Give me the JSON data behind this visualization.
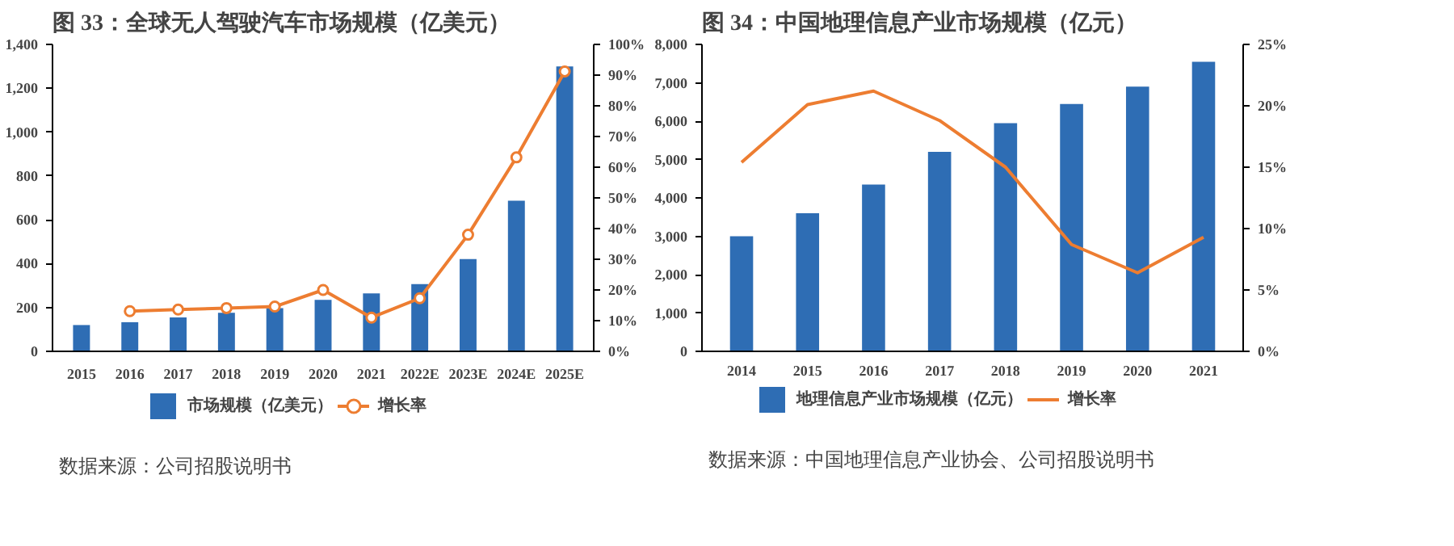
{
  "chart_data": [
    {
      "type": "bar",
      "title": "图 33：全球无人驾驶汽车市场规模（亿美元）",
      "categories": [
        "2015",
        "2016",
        "2017",
        "2018",
        "2019",
        "2020",
        "2021",
        "2022E",
        "2023E",
        "2024E",
        "2025E"
      ],
      "series": [
        {
          "name": "市场规模（亿美元）",
          "color": "#2e6db4",
          "values": [
            120,
            133,
            155,
            176,
            197,
            235,
            264,
            307,
            421,
            687,
            1300
          ]
        },
        {
          "name": "增长率",
          "type": "line",
          "axis": "y2",
          "color": "#ed7d31",
          "values": [
            null,
            13.1,
            13.6,
            14.1,
            14.6,
            20.0,
            11.0,
            17.3,
            38.0,
            63.2,
            91.2
          ]
        }
      ],
      "ylim": [
        0,
        1400
      ],
      "yticks": [
        0,
        200,
        400,
        600,
        800,
        {
          "value": 1000,
          "label": "1,000"
        },
        {
          "value": 1200,
          "label": "1,200"
        },
        {
          "value": 1400,
          "label": "1,400"
        }
      ],
      "y2lim": [
        0,
        100
      ],
      "y2ticks": [
        {
          "value": 0,
          "label": "0%"
        },
        {
          "value": 10,
          "label": "10%"
        },
        {
          "value": 20,
          "label": "20%"
        },
        {
          "value": 30,
          "label": "30%"
        },
        {
          "value": 40,
          "label": "40%"
        },
        {
          "value": 50,
          "label": "50%"
        },
        {
          "value": 60,
          "label": "60%"
        },
        {
          "value": 70,
          "label": "70%"
        },
        {
          "value": 80,
          "label": "80%"
        },
        {
          "value": 90,
          "label": "90%"
        },
        {
          "value": 100,
          "label": "100%"
        }
      ],
      "marker": "circle",
      "legend": "bottom",
      "grid": false,
      "annotations": [
        "数据来源：公司招股说明书"
      ]
    },
    {
      "type": "bar",
      "title": "图 34：中国地理信息产业市场规模（亿元）",
      "categories": [
        "2014",
        "2015",
        "2016",
        "2017",
        "2018",
        "2019",
        "2020",
        "2021"
      ],
      "series": [
        {
          "name": "地理信息产业市场规模（亿元）",
          "color": "#2e6db4",
          "values": [
            3000,
            3600,
            4350,
            5200,
            5950,
            6450,
            6900,
            7550
          ]
        },
        {
          "name": "增长率",
          "type": "line",
          "axis": "y2",
          "color": "#ed7d31",
          "values": [
            15.4,
            20.1,
            21.2,
            18.8,
            15.0,
            8.7,
            6.4,
            9.3
          ]
        }
      ],
      "ylim": [
        0,
        8000
      ],
      "yticks": [
        0,
        {
          "value": 1000,
          "label": "1,000"
        },
        {
          "value": 2000,
          "label": "2,000"
        },
        {
          "value": 3000,
          "label": "3,000"
        },
        {
          "value": 4000,
          "label": "4,000"
        },
        {
          "value": 5000,
          "label": "5,000"
        },
        {
          "value": 6000,
          "label": "6,000"
        },
        {
          "value": 7000,
          "label": "7,000"
        },
        {
          "value": 8000,
          "label": "8,000"
        }
      ],
      "y2lim": [
        0,
        25
      ],
      "y2ticks": [
        {
          "value": 0,
          "label": "0%"
        },
        {
          "value": 5,
          "label": "5%"
        },
        {
          "value": 10,
          "label": "10%"
        },
        {
          "value": 15,
          "label": "15%"
        },
        {
          "value": 20,
          "label": "20%"
        },
        {
          "value": 25,
          "label": "25%"
        }
      ],
      "marker": "none",
      "legend": "bottom",
      "grid": false,
      "annotations": [
        "数据来源：中国地理信息产业协会、公司招股说明书"
      ]
    }
  ]
}
